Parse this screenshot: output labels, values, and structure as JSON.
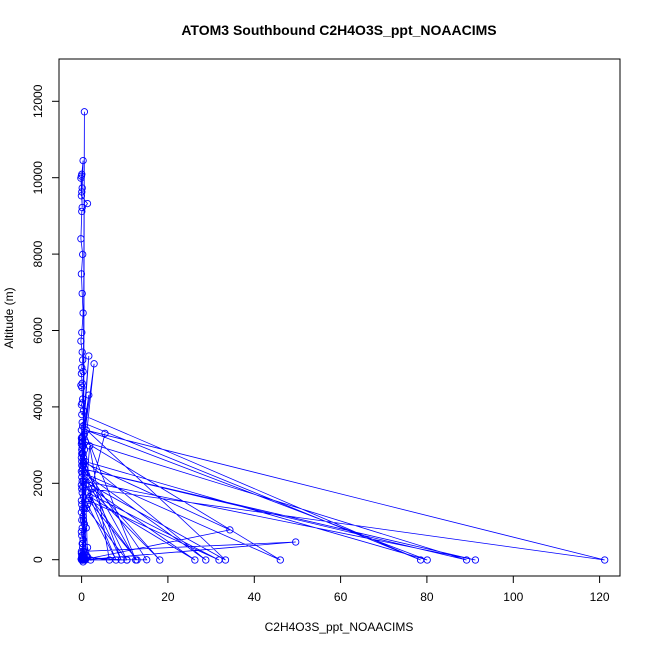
{
  "chart_data": {
    "type": "line",
    "title": "ATOM3 Southbound C2H4O3S_ppt_NOAACIMS",
    "xlabel": "C2H4O3S_ppt_NOAACIMS",
    "ylabel": "Altitude (m)",
    "xlim": [
      -5,
      123
    ],
    "ylim": [
      -230,
      13000
    ],
    "xticks": [
      "0",
      "20",
      "40",
      "60",
      "80",
      "100",
      "120"
    ],
    "yticks": [
      "0",
      "2000",
      "4000",
      "6000",
      "8000",
      "10000",
      "12000"
    ],
    "grid": false,
    "legend": "none",
    "series_color": "#0000ff",
    "series": [
      {
        "x": [
          0.1,
          0.2,
          0.3,
          0.0,
          0.2,
          0.5,
          0.3,
          0.1,
          1.5,
          0.2,
          0.0,
          0.4,
          0.1,
          0.3,
          0.5,
          0.2,
          0.0,
          0.3,
          0.4,
          0.2,
          0.5,
          0.1,
          0.3,
          0.0,
          0.2,
          0.4,
          0.3,
          0.1,
          0.6,
          0.2,
          77.5,
          0.3,
          0.1,
          0.3,
          0.2,
          1.8,
          0.4,
          0.1,
          0.5,
          0.2,
          0.3,
          0.1,
          0.4,
          1.8,
          0.2,
          0.3,
          0.8,
          0.1,
          3.0,
          0.6,
          0.2,
          0.4,
          0.1,
          0.6,
          0.3,
          0.2,
          0.5,
          0.3,
          0.1,
          0.4,
          0.2,
          0.3,
          0.6,
          0.1,
          0.2,
          0.4,
          0.1,
          0.5,
          0.2,
          0.8,
          0.3,
          0.1,
          0.2,
          0.5,
          0.3,
          0.4,
          0.1,
          0.6,
          0.2,
          0.3,
          0.1,
          0.4,
          0.2,
          0.3,
          0.5,
          0.1,
          0.6,
          0.4,
          0.8,
          0.3,
          1.2,
          0.4,
          0.2,
          0.1,
          0.3,
          15.0,
          0.5,
          12.5,
          0.4,
          33.0,
          0.6,
          90.0,
          0.9,
          88.0,
          1.0,
          45.5,
          0.8,
          28.5,
          1.0,
          79.0,
          1.2,
          119.5,
          2.5,
          26.0,
          2.0,
          12.8,
          1.8,
          31.5,
          1.6,
          8.0,
          1.5,
          5.5,
          1.3,
          10.5,
          1.2,
          18.0,
          1.1,
          9.2,
          0.6,
          0.3,
          1.2,
          0.6,
          2.0,
          6.5,
          1.5,
          0.8,
          0.5,
          0.6,
          0.2,
          34.0,
          0.2,
          49.0,
          0.6,
          0.2,
          0.5,
          1.0,
          0.5,
          0.2,
          1.2,
          2.2,
          1.5,
          0.4,
          0.2,
          0.4,
          10.5,
          0.5,
          0.8,
          0.4,
          0.6,
          0.6,
          0.1,
          1.0,
          0.3,
          0.1,
          0.2,
          0.1,
          0.6,
          0.8,
          0.4
        ],
        "y": [
          10000,
          9600,
          9200,
          9950,
          10050,
          10400,
          9700,
          9500,
          9300,
          9100,
          8400,
          8000,
          7500,
          7000,
          6500,
          6000,
          5780,
          5500,
          5300,
          5100,
          5000,
          4950,
          4700,
          4650,
          4600,
          4300,
          4200,
          4150,
          4000,
          3900,
          180,
          3700,
          3500,
          3330,
          3250,
          5400,
          3200,
          3150,
          3100,
          3000,
          3050,
          3300,
          3100,
          4400,
          3200,
          2900,
          3400,
          2800,
          5200,
          2700,
          2600,
          2500,
          2450,
          2650,
          2400,
          2300,
          2600,
          2200,
          2100,
          2050,
          2000,
          1900,
          1800,
          1700,
          1600,
          1500,
          1400,
          1300,
          1200,
          1100,
          1000,
          900,
          800,
          700,
          600,
          500,
          400,
          300,
          250,
          220,
          200,
          210,
          190,
          180,
          230,
          350,
          300,
          260,
          1500,
          280,
          1000,
          600,
          240,
          200,
          190,
          185,
          2600,
          180,
          3600,
          180,
          2200,
          180,
          2500,
          180,
          3200,
          180,
          2400,
          180,
          2700,
          180,
          3500,
          180,
          2000,
          180,
          1800,
          180,
          1700,
          180,
          1900,
          180,
          1600,
          3420,
          1500,
          180,
          2300,
          180,
          2100,
          180,
          2800,
          3300,
          260,
          1200,
          3100,
          180,
          260,
          3000,
          2900,
          2800,
          2700,
          950,
          180,
          640,
          400,
          300,
          200,
          180,
          130,
          2900,
          300,
          180,
          500,
          200,
          230,
          180,
          180,
          250,
          180,
          300,
          200,
          190,
          210,
          190,
          180,
          200,
          180,
          190,
          180,
          11650,
          200
        ]
      }
    ]
  }
}
